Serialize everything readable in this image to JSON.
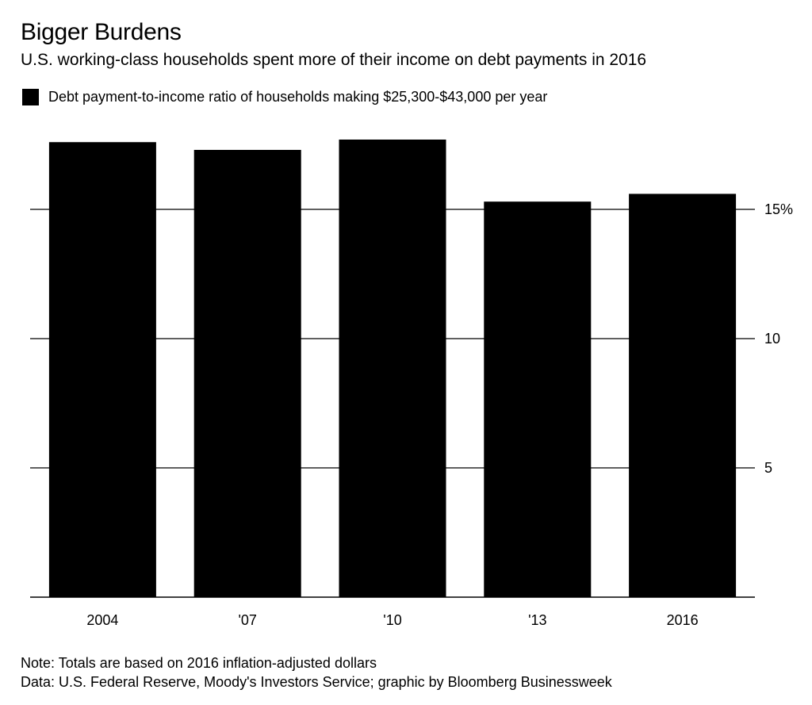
{
  "chart_data": {
    "type": "bar",
    "title": "Bigger Burdens",
    "subtitle": "U.S. working-class households spent more of their income on debt payments in 2016",
    "categories": [
      "2004",
      "'07",
      "'10",
      "'13",
      "2016"
    ],
    "series": [
      {
        "name": "Debt payment-to-income ratio of households making $25,300-$43,000 per year",
        "values": [
          17.6,
          17.3,
          17.7,
          15.3,
          15.6
        ],
        "color": "#000000"
      }
    ],
    "ylim": [
      0,
      18
    ],
    "yticks": [
      5,
      10,
      15
    ],
    "ytick_labels": [
      "5",
      "10",
      "15%"
    ],
    "y_axis_side": "right",
    "grid": true,
    "legend_position": "top-left",
    "xlabel": "",
    "ylabel": ""
  },
  "notes": {
    "note": "Note: Totals are based on 2016 inflation-adjusted dollars",
    "source": "Data: U.S. Federal Reserve, Moody's Investors Service; graphic by Bloomberg Businessweek"
  }
}
